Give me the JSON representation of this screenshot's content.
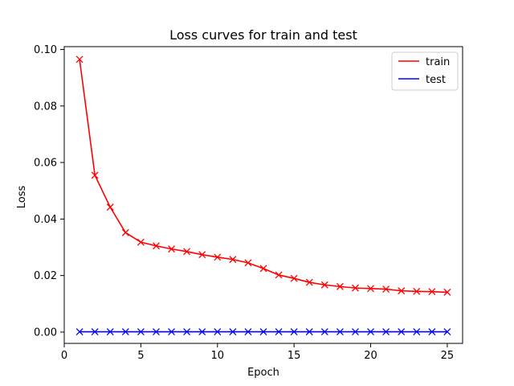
{
  "chart_data": {
    "type": "line",
    "title": "Loss curves for train and test",
    "xlabel": "Epoch",
    "ylabel": "Loss",
    "xlim": [
      0,
      26
    ],
    "ylim": [
      -0.004,
      0.101
    ],
    "xticks": [
      0,
      5,
      10,
      15,
      20,
      25
    ],
    "xtick_labels": [
      "0",
      "5",
      "10",
      "15",
      "20",
      "25"
    ],
    "yticks": [
      0.0,
      0.02,
      0.04,
      0.06,
      0.08,
      0.1
    ],
    "ytick_labels": [
      "0.00",
      "0.02",
      "0.04",
      "0.06",
      "0.08",
      "0.10"
    ],
    "grid": false,
    "legend_position": "top-right",
    "x": [
      1,
      2,
      3,
      4,
      5,
      6,
      7,
      8,
      9,
      10,
      11,
      12,
      13,
      14,
      15,
      16,
      17,
      18,
      19,
      20,
      21,
      22,
      23,
      24,
      25
    ],
    "series": [
      {
        "name": "train",
        "color": "#ff0000",
        "marker": "x",
        "values": [
          0.0965,
          0.0555,
          0.0442,
          0.0352,
          0.0318,
          0.0305,
          0.0294,
          0.0285,
          0.0274,
          0.0265,
          0.0257,
          0.0245,
          0.0225,
          0.0202,
          0.019,
          0.0176,
          0.0167,
          0.0161,
          0.0156,
          0.0154,
          0.0152,
          0.0146,
          0.0144,
          0.0143,
          0.0141
        ]
      },
      {
        "name": "test",
        "color": "#0000ff",
        "marker": "x",
        "values": [
          0.0001,
          0.0001,
          0.0001,
          0.0001,
          0.0001,
          0.0001,
          0.0001,
          0.0001,
          0.0001,
          0.0001,
          0.0001,
          0.0001,
          0.0001,
          0.0001,
          0.0001,
          0.0001,
          0.0001,
          0.0001,
          0.0001,
          0.0001,
          0.0001,
          0.0001,
          0.0001,
          0.0001,
          0.0001
        ]
      }
    ]
  }
}
